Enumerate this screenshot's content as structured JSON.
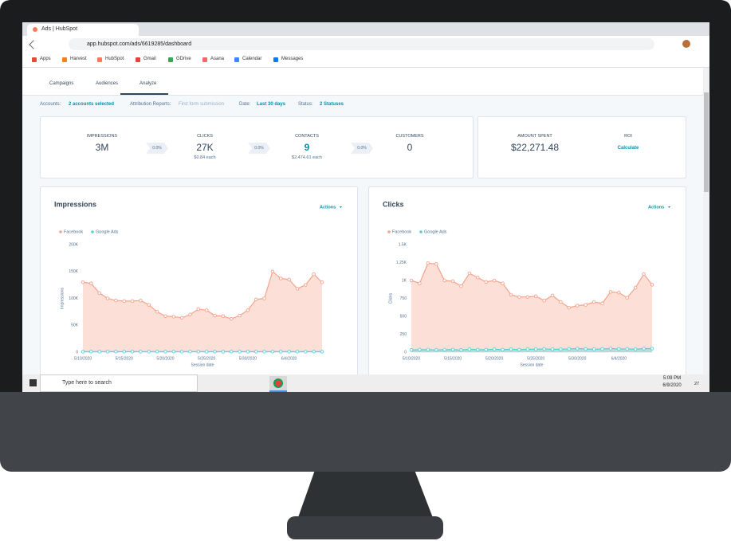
{
  "browser": {
    "tab_title": "Ads | HubSpot",
    "url": "app.hubspot.com/ads/6619285/dashboard",
    "bookmarks": [
      "Apps",
      "Harvest",
      "HubSpot",
      "Gmail",
      "GDrive",
      "Asana",
      "Calendar",
      "Messages"
    ]
  },
  "nav_tabs": [
    "Campaigns",
    "Audiences",
    "Analyze"
  ],
  "filters": [
    {
      "label": "Accounts:",
      "value": "2 accounts selected"
    },
    {
      "label": "Attribution Reports:",
      "value": "First form submission"
    },
    {
      "label": "Date:",
      "value": "Last 30 days"
    },
    {
      "label": "Status:",
      "value": "2 Statuses"
    }
  ],
  "funnel": {
    "stages": [
      {
        "label": "IMPRESSIONS",
        "value": "3M"
      },
      {
        "label": "CLICKS",
        "value": "27K",
        "sub": "$0.84 each"
      },
      {
        "label": "CONTACTS",
        "value": "9",
        "sub": "$2,474.61 each"
      },
      {
        "label": "CUSTOMERS",
        "value": "0"
      }
    ],
    "rates": [
      "0.0%",
      "0.0%",
      "0.0%"
    ]
  },
  "spend": {
    "label": "AMOUNT SPENT",
    "value": "$22,271.48"
  },
  "roi": {
    "label": "ROI",
    "action": "Calculate"
  },
  "chart_data": [
    {
      "type": "area",
      "title": "Impressions",
      "menu": "Actions",
      "x_label": "Session date",
      "y_label": "Impressions",
      "categories": [
        "5/10/2020",
        null,
        null,
        null,
        null,
        "5/15/2020",
        null,
        null,
        null,
        null,
        "5/20/2020",
        null,
        null,
        null,
        null,
        "5/25/2020",
        null,
        null,
        null,
        null,
        "5/30/2020",
        null,
        null,
        null,
        null,
        "6/4/2020",
        null,
        null,
        null,
        null
      ],
      "series": [
        {
          "name": "Facebook",
          "color": "#f5a38b",
          "values": [
            130000,
            128000,
            110000,
            100000,
            96000,
            95000,
            95000,
            96000,
            88000,
            75000,
            67000,
            66000,
            64000,
            70000,
            80000,
            78000,
            68000,
            67000,
            62000,
            68000,
            78000,
            98000,
            100000,
            150000,
            137000,
            135000,
            118000,
            125000,
            145000,
            130000
          ]
        },
        {
          "name": "Google Ads",
          "color": "#51d3d9",
          "values": [
            1000,
            1000,
            1000,
            1000,
            1000,
            1000,
            1000,
            1000,
            1000,
            1000,
            1000,
            1000,
            1000,
            1000,
            1000,
            1000,
            1000,
            1000,
            1000,
            1000,
            1000,
            1000,
            1000,
            1000,
            1000,
            1000,
            1000,
            1000,
            1000,
            1000
          ]
        }
      ],
      "ylim": [
        0,
        200000
      ],
      "yticks": [
        0,
        {
          "value": 50000,
          "label": "50K"
        },
        {
          "value": 100000,
          "label": "100K"
        },
        {
          "value": 150000,
          "label": "150K"
        },
        {
          "value": 200000,
          "label": "200K"
        }
      ],
      "grid": false
    },
    {
      "type": "area",
      "title": "Clicks",
      "menu": "Actions",
      "x_label": "Session date",
      "y_label": "Clicks",
      "categories": [
        "5/10/2020",
        null,
        null,
        null,
        null,
        "5/15/2020",
        null,
        null,
        null,
        null,
        "5/20/2020",
        null,
        null,
        null,
        null,
        "5/25/2020",
        null,
        null,
        null,
        null,
        "5/30/2020",
        null,
        null,
        null,
        null,
        "6/4/2020",
        null,
        null,
        null,
        null
      ],
      "series": [
        {
          "name": "Facebook",
          "color": "#f5a38b",
          "values": [
            1000,
            960,
            1240,
            1230,
            1000,
            990,
            920,
            1100,
            1040,
            980,
            1000,
            960,
            800,
            770,
            770,
            780,
            720,
            790,
            700,
            620,
            650,
            660,
            700,
            680,
            840,
            830,
            760,
            900,
            1090,
            940
          ]
        },
        {
          "name": "Google Ads",
          "color": "#51d3d9",
          "values": [
            30,
            35,
            35,
            30,
            35,
            35,
            30,
            40,
            35,
            35,
            40,
            35,
            40,
            35,
            40,
            40,
            45,
            40,
            40,
            45,
            50,
            45,
            40,
            45,
            50,
            45,
            45,
            40,
            50,
            50
          ]
        }
      ],
      "ylim": [
        0,
        1500
      ],
      "yticks": [
        0,
        250,
        500,
        750,
        {
          "value": 1000,
          "label": "1K"
        },
        {
          "value": 1250,
          "label": "1.25K"
        },
        {
          "value": 1500,
          "label": "1.5K"
        }
      ],
      "grid": false
    }
  ],
  "taskbar": {
    "search": "Type here to search",
    "time": "5:09 PM",
    "date": "6/9/2020",
    "notifications": "27"
  }
}
